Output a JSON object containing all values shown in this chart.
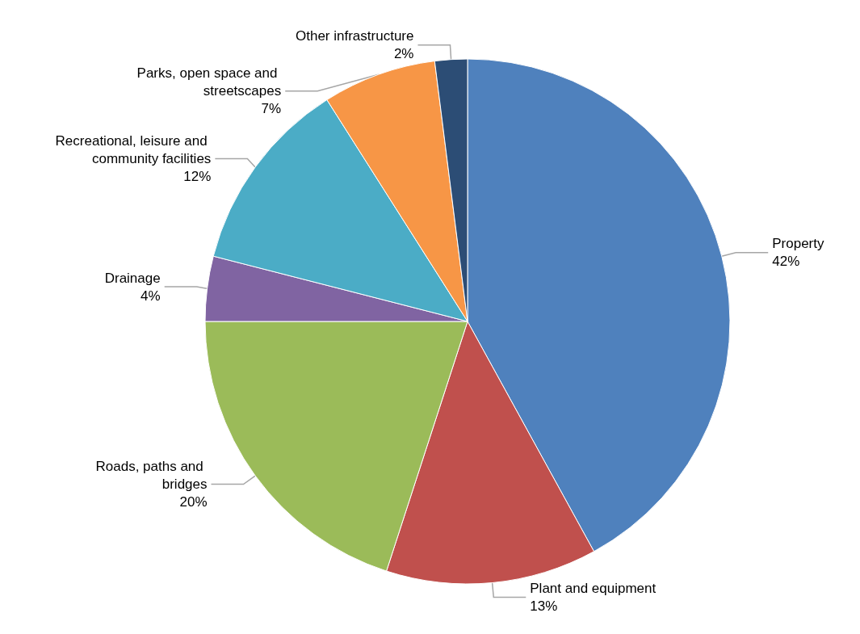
{
  "chart_data": {
    "type": "pie",
    "categories": [
      "Property",
      "Plant and equipment",
      "Roads, paths and bridges",
      "Drainage",
      "Recreational, leisure and community facilities",
      "Parks, open space and streetscapes",
      "Other infrastructure"
    ],
    "values": [
      42,
      13,
      20,
      4,
      12,
      7,
      2
    ],
    "value_labels": [
      "42%",
      "13%",
      "20%",
      "4%",
      "12%",
      "7%",
      "2%"
    ],
    "colors": [
      "#4f81bd",
      "#c0504d",
      "#9bbb59",
      "#8064a2",
      "#4bacc6",
      "#f79646",
      "#2c4d75"
    ],
    "legend": false
  }
}
